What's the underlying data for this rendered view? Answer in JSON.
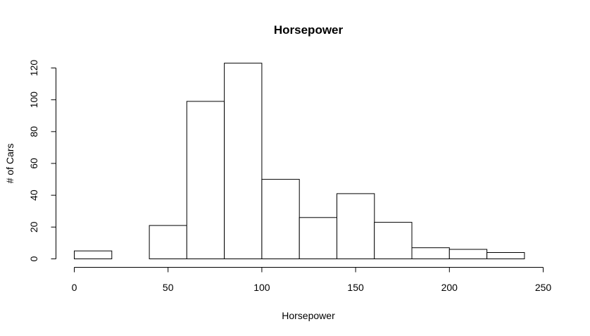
{
  "chart_data": {
    "type": "bar",
    "title": "Horsepower",
    "xlabel": "Horsepower",
    "ylabel": "# of Cars",
    "bin_edges": [
      0,
      20,
      40,
      60,
      80,
      100,
      120,
      140,
      160,
      180,
      200,
      220,
      240
    ],
    "values": [
      5,
      0,
      21,
      99,
      123,
      50,
      26,
      41,
      23,
      7,
      6,
      4
    ],
    "xlim": [
      0,
      250
    ],
    "ylim": [
      0,
      120
    ],
    "x_ticks": [
      0,
      50,
      100,
      150,
      200,
      250
    ],
    "y_ticks": [
      0,
      20,
      40,
      60,
      80,
      100,
      120
    ],
    "grid": false,
    "legend": "none",
    "bar_fill": "#ffffff",
    "bar_stroke": "#000000"
  }
}
